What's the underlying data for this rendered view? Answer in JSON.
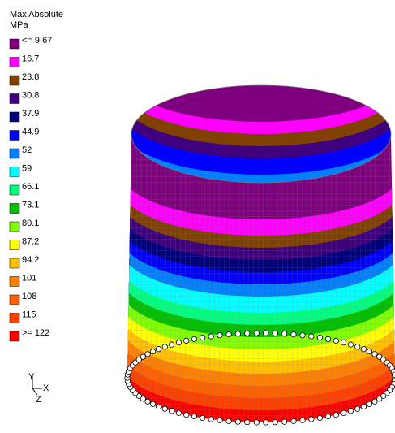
{
  "legend": {
    "title": "Max Absolute",
    "unit": "MPa",
    "entries": [
      {
        "label": "<= 9.67",
        "color": "#7f007f"
      },
      {
        "label": "16.7",
        "color": "#ff00ff"
      },
      {
        "label": "23.8",
        "color": "#7f4000"
      },
      {
        "label": "30.8",
        "color": "#3f007f"
      },
      {
        "label": "37.9",
        "color": "#00007f"
      },
      {
        "label": "44.9",
        "color": "#0000ff"
      },
      {
        "label": "52",
        "color": "#0080ff"
      },
      {
        "label": "59",
        "color": "#00ffff"
      },
      {
        "label": "66.1",
        "color": "#00ff80"
      },
      {
        "label": "73.1",
        "color": "#00c000"
      },
      {
        "label": "80.1",
        "color": "#80ff00"
      },
      {
        "label": "87.2",
        "color": "#ffff00"
      },
      {
        "label": "94.2",
        "color": "#ffc000"
      },
      {
        "label": "101",
        "color": "#ff8000"
      },
      {
        "label": "108",
        "color": "#ff6000"
      },
      {
        "label": "115",
        "color": "#ff4000"
      },
      {
        "label": ">= 122",
        "color": "#ff0000"
      }
    ]
  },
  "triad": {
    "y": "Y",
    "x": "X",
    "z": "Z"
  }
}
